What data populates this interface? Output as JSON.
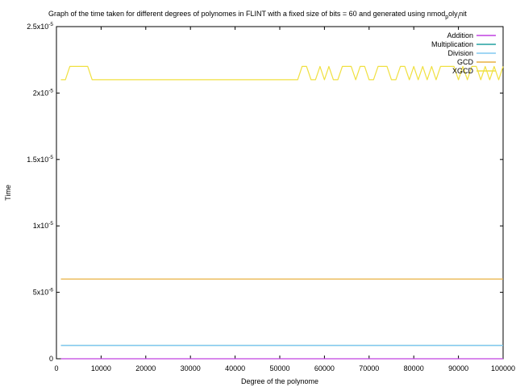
{
  "chart_data": {
    "type": "line",
    "title": "Graph of the time taken for different degrees of polynomes in FLINT with a fixed size of bits = 60 and generated using nmod",
    "title_subscript": "p",
    "title_suffix_mid": "oly",
    "title_subscript2": "i",
    "title_suffix": "nit",
    "xlabel": "Degree of the polynome",
    "ylabel": "Time",
    "xlim": [
      0,
      100000
    ],
    "ylim": [
      0,
      2.5e-05
    ],
    "x_ticks": [
      {
        "value": 0,
        "label": "0"
      },
      {
        "value": 10000,
        "label": "10000"
      },
      {
        "value": 20000,
        "label": "20000"
      },
      {
        "value": 30000,
        "label": "30000"
      },
      {
        "value": 40000,
        "label": "40000"
      },
      {
        "value": 50000,
        "label": "50000"
      },
      {
        "value": 60000,
        "label": "60000"
      },
      {
        "value": 70000,
        "label": "70000"
      },
      {
        "value": 80000,
        "label": "80000"
      },
      {
        "value": 90000,
        "label": "90000"
      },
      {
        "value": 100000,
        "label": "100000"
      }
    ],
    "y_ticks": [
      {
        "value": 0,
        "label": "0",
        "mantissa": "0",
        "exp": ""
      },
      {
        "value": 5e-06,
        "label": "5x10-6",
        "mantissa": "5x10",
        "exp": "-6"
      },
      {
        "value": 1e-05,
        "label": "1x10-5",
        "mantissa": "1x10",
        "exp": "-5"
      },
      {
        "value": 1.5e-05,
        "label": "1.5x10-5",
        "mantissa": "1.5x10",
        "exp": "-5"
      },
      {
        "value": 2e-05,
        "label": "2x10-5",
        "mantissa": "2x10",
        "exp": "-5"
      },
      {
        "value": 2.5e-05,
        "label": "2.5x10-5",
        "mantissa": "2.5x10",
        "exp": "-5"
      }
    ],
    "grid": false,
    "legend_position": "top-right",
    "series": [
      {
        "name": "Addition",
        "color": "#c040e0",
        "x": [
          1000,
          100000
        ],
        "y": [
          0,
          0
        ]
      },
      {
        "name": "Multiplication",
        "color": "#20a0a0",
        "x": [
          1000,
          100000
        ],
        "y": [
          1e-06,
          1e-06
        ]
      },
      {
        "name": "Division",
        "color": "#80c8f0",
        "x": [
          1000,
          100000
        ],
        "y": [
          1e-06,
          1e-06
        ]
      },
      {
        "name": "GCD",
        "color": "#e8b040",
        "x": [
          1000,
          100000
        ],
        "y": [
          6e-06,
          6e-06
        ]
      },
      {
        "name": "XGCD",
        "color": "#f0e040",
        "x": [
          1000,
          2000,
          3000,
          4000,
          5000,
          6000,
          7000,
          8000,
          10000,
          20000,
          30000,
          40000,
          50000,
          54000,
          55000,
          56000,
          57000,
          58000,
          59000,
          60000,
          61000,
          62000,
          63000,
          64000,
          65000,
          66000,
          67000,
          68000,
          69000,
          70000,
          71000,
          72000,
          73000,
          74000,
          75000,
          76000,
          77000,
          78000,
          79000,
          80000,
          81000,
          82000,
          83000,
          84000,
          85000,
          86000,
          87000,
          88000,
          89000,
          90000,
          91000,
          92000,
          93000,
          94000,
          95000,
          96000,
          97000,
          98000,
          99000,
          100000
        ],
        "y": [
          2.1e-05,
          2.1e-05,
          2.2e-05,
          2.2e-05,
          2.2e-05,
          2.2e-05,
          2.2e-05,
          2.1e-05,
          2.1e-05,
          2.1e-05,
          2.1e-05,
          2.1e-05,
          2.1e-05,
          2.1e-05,
          2.2e-05,
          2.2e-05,
          2.1e-05,
          2.1e-05,
          2.2e-05,
          2.1e-05,
          2.2e-05,
          2.1e-05,
          2.1e-05,
          2.2e-05,
          2.2e-05,
          2.2e-05,
          2.1e-05,
          2.2e-05,
          2.2e-05,
          2.1e-05,
          2.1e-05,
          2.2e-05,
          2.2e-05,
          2.2e-05,
          2.1e-05,
          2.1e-05,
          2.2e-05,
          2.2e-05,
          2.1e-05,
          2.2e-05,
          2.1e-05,
          2.2e-05,
          2.1e-05,
          2.2e-05,
          2.1e-05,
          2.2e-05,
          2.2e-05,
          2.2e-05,
          2.2e-05,
          2.1e-05,
          2.2e-05,
          2.1e-05,
          2.2e-05,
          2.2e-05,
          2.1e-05,
          2.2e-05,
          2.1e-05,
          2.2e-05,
          2.1e-05,
          2.2e-05
        ]
      }
    ]
  }
}
